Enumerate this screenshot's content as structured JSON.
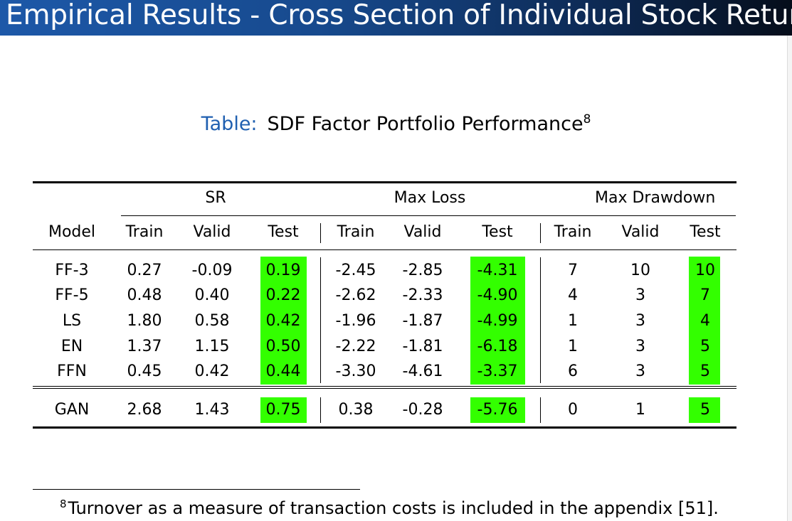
{
  "slide_title": "Empirical Results - Cross Section of Individual Stock Returns",
  "caption": {
    "label": "Table:",
    "text": "SDF Factor Portfolio Performance",
    "footnote_mark": "8"
  },
  "table": {
    "group_headers": [
      "SR",
      "Max Loss",
      "Max Drawdown"
    ],
    "columns": [
      "Model",
      "Train",
      "Valid",
      "Test",
      "Train",
      "Valid",
      "Test",
      "Train",
      "Valid",
      "Test"
    ],
    "rows": [
      [
        "FF-3",
        "0.27",
        "-0.09",
        "0.19",
        "-2.45",
        "-2.85",
        "-4.31",
        "7",
        "10",
        "10"
      ],
      [
        "FF-5",
        "0.48",
        "0.40",
        "0.22",
        "-2.62",
        "-2.33",
        "-4.90",
        "4",
        "3",
        "7"
      ],
      [
        "LS",
        "1.80",
        "0.58",
        "0.42",
        "-1.96",
        "-1.87",
        "-4.99",
        "1",
        "3",
        "4"
      ],
      [
        "EN",
        "1.37",
        "1.15",
        "0.50",
        "-2.22",
        "-1.81",
        "-6.18",
        "1",
        "3",
        "5"
      ],
      [
        "FFN",
        "0.45",
        "0.42",
        "0.44",
        "-3.30",
        "-4.61",
        "-3.37",
        "6",
        "3",
        "5"
      ],
      [
        "GAN",
        "2.68",
        "1.43",
        "0.75",
        "0.38",
        "-0.28",
        "-5.76",
        "0",
        "1",
        "5"
      ]
    ],
    "highlight_color": "#33ff00"
  },
  "footnote": {
    "mark": "8",
    "text": "Turnover as a measure of transaction costs is included in the appendix [51]."
  }
}
